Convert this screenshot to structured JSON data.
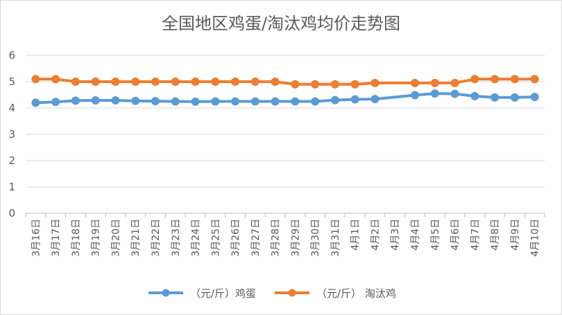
{
  "chart_data": {
    "type": "line",
    "title": "全国地区鸡蛋/淘汰鸡均价走势图",
    "xlabel": "",
    "ylabel": "",
    "ylim": [
      0,
      6
    ],
    "yticks": [
      "0",
      "1",
      "2",
      "3",
      "4",
      "5",
      "6"
    ],
    "grid": true,
    "legend_position": "bottom",
    "categories": [
      "3月16日",
      "3月17日",
      "3月18日",
      "3月19日",
      "3月20日",
      "3月21日",
      "3月22日",
      "3月23日",
      "3月24日",
      "3月25日",
      "3月26日",
      "3月27日",
      "3月28日",
      "3月29日",
      "3月30日",
      "3月31日",
      "4月1日",
      "4月2日",
      "4月3日",
      "4月4日",
      "4月5日",
      "4月6日",
      "4月7日",
      "4月8日",
      "4月9日",
      "4月10日"
    ],
    "series": [
      {
        "name": "（元/斤）鸡蛋",
        "color": "#5b9bd5",
        "values": [
          4.2,
          4.23,
          4.28,
          4.29,
          4.29,
          4.27,
          4.26,
          4.25,
          4.24,
          4.25,
          4.25,
          4.25,
          4.25,
          4.25,
          4.25,
          4.3,
          4.33,
          4.34,
          null,
          4.49,
          4.55,
          4.54,
          4.45,
          4.4,
          4.4,
          4.42
        ]
      },
      {
        "name": "（元/斤） 淘汰鸡",
        "color": "#ed7d31",
        "values": [
          5.1,
          5.1,
          5.0,
          5.0,
          5.0,
          5.0,
          5.0,
          5.0,
          5.0,
          5.0,
          5.0,
          5.0,
          5.0,
          4.9,
          4.9,
          4.9,
          4.9,
          4.95,
          null,
          4.95,
          4.95,
          4.95,
          5.1,
          5.1,
          5.1,
          5.1
        ]
      }
    ]
  }
}
